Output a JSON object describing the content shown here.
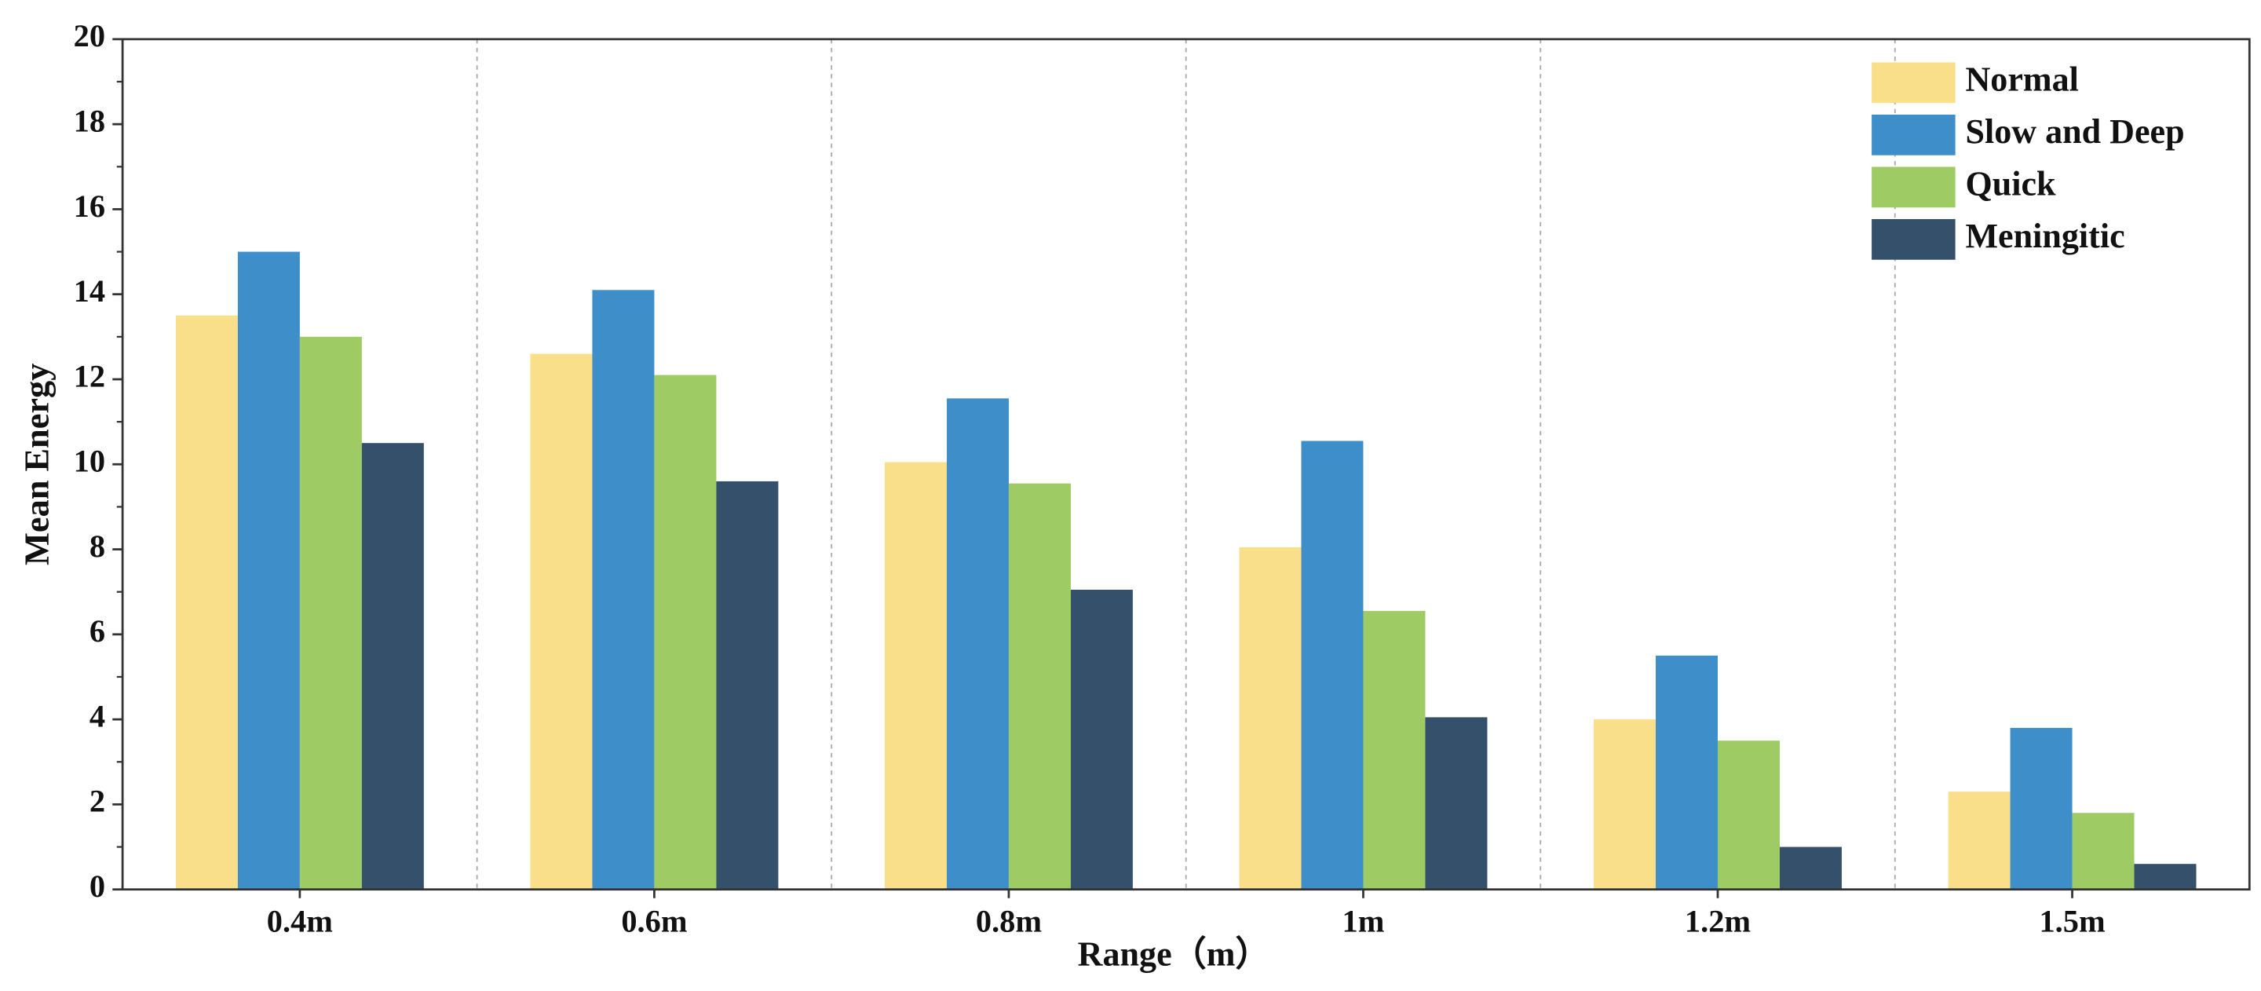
{
  "chart_data": {
    "type": "bar",
    "x_label": "Range（m）",
    "y_label": "Mean Energy",
    "categories": [
      "0.4m",
      "0.6m",
      "0.8m",
      "1m",
      "1.2m",
      "1.5m"
    ],
    "series": [
      {
        "name": "Normal",
        "color": "#f9df8a",
        "values": [
          13.5,
          12.6,
          10.05,
          8.05,
          4,
          2.3
        ]
      },
      {
        "name": "Slow and Deep",
        "color": "#3e8ec9",
        "values": [
          15,
          14.1,
          11.55,
          10.55,
          5.5,
          3.8
        ]
      },
      {
        "name": "Quick",
        "color": "#9ecb63",
        "values": [
          13,
          12.1,
          9.55,
          6.55,
          3.5,
          1.8
        ]
      },
      {
        "name": "Meningitic",
        "color": "#35506a",
        "values": [
          10.5,
          9.6,
          7.05,
          4.05,
          1,
          0.6
        ]
      }
    ],
    "ylim": [
      0,
      20
    ],
    "yticks": [
      0,
      2,
      4,
      6,
      8,
      10,
      12,
      14,
      16,
      18,
      20
    ],
    "legend": "upper right"
  }
}
